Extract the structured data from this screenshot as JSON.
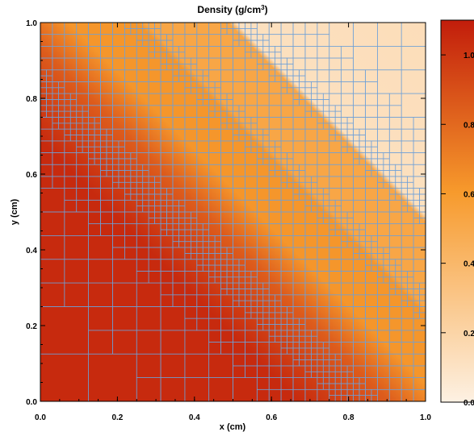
{
  "chart_data": {
    "type": "heatmap",
    "title": "Density (g/cm",
    "title_superscript": "3",
    "title_close": ")",
    "xlabel": "x (cm)",
    "ylabel": "y (cm)",
    "xlim": [
      0.0,
      1.0
    ],
    "ylim": [
      0.0,
      1.0
    ],
    "x_ticks": [
      "0.0",
      "0.2",
      "0.4",
      "0.6",
      "0.8",
      "1.0"
    ],
    "y_ticks": [
      "0.0",
      "0.2",
      "0.4",
      "0.6",
      "0.8",
      "1.0"
    ],
    "colorbar": {
      "range": [
        0.0,
        1.1
      ],
      "ticks": [
        "0.0",
        "0.2",
        "0.4",
        "0.6",
        "0.8",
        "1.0"
      ],
      "low_color": "#fdf1e3",
      "mid_color": "#f79a2c",
      "high_color": "#c21d0b"
    },
    "field_regions": [
      {
        "region": "lower-left dense",
        "diagonal_x_plus_y_below": 0.72,
        "density": 1.05
      },
      {
        "region": "transition",
        "diagonal_x_plus_y": [
          0.72,
          0.93
        ],
        "density": [
          1.05,
          0.62
        ]
      },
      {
        "region": "middle band",
        "diagonal_x_plus_y": [
          0.93,
          1.25
        ],
        "density": 0.62
      },
      {
        "region": "upper band",
        "diagonal_x_plus_y": [
          1.25,
          1.5
        ],
        "density": 0.52
      },
      {
        "region": "upper-right light",
        "diagonal_x_plus_y_above": 1.5,
        "density": 0.12
      }
    ],
    "mesh": "adaptive refinement grid (AMR cells), blue lines, finest cells at 1/64 cm near density gradients",
    "grid_color": "#6ea0d8"
  }
}
